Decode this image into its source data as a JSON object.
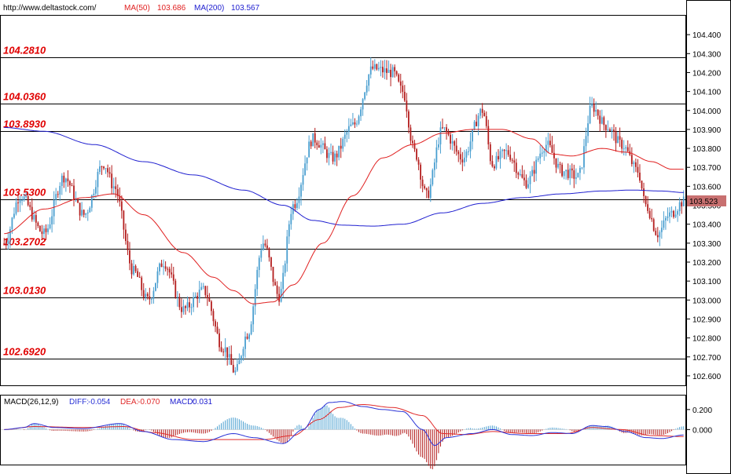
{
  "header": {
    "source_url": "http://www.deltastock.com/",
    "ma50_label": "MA(50)",
    "ma50_value": "103.686",
    "ma200_label": "MA(200)",
    "ma200_value": "103.567"
  },
  "macd_header": {
    "name": "MACD(26,12,9)",
    "diff_label": "DIFF:",
    "diff_value": "-0.054",
    "dea_label": "DEA:",
    "dea_value": "-0.070",
    "macd_label": "MACD:",
    "macd_value": "0.031"
  },
  "price_tag": "103.523",
  "colors": {
    "up": "#4a9fd0",
    "down": "#b41e1e",
    "ma50": "#e02020",
    "ma200": "#2020d0",
    "diff": "#2a33d6",
    "dea": "#e02a2a",
    "price_tag_bg": "#c87070"
  },
  "chart_data": [
    {
      "type": "candlestick",
      "ylim": [
        102.55,
        104.5
      ],
      "y_ticks": [
        "104.400",
        "104.300",
        "104.200",
        "104.100",
        "104.000",
        "103.900",
        "103.800",
        "103.700",
        "103.600",
        "103.500",
        "103.400",
        "103.300",
        "103.200",
        "103.100",
        "103.000",
        "102.900",
        "102.800",
        "102.700",
        "102.600"
      ],
      "levels": [
        {
          "label": "104.2810",
          "value": 104.281
        },
        {
          "label": "104.0360",
          "value": 104.036
        },
        {
          "label": "103.8930",
          "value": 103.893
        },
        {
          "label": "103.5300",
          "value": 103.53
        },
        {
          "label": "103.2702",
          "value": 103.2702
        },
        {
          "label": "103.0130",
          "value": 103.013
        },
        {
          "label": "102.6920",
          "value": 102.692
        }
      ],
      "price_anchors": [
        [
          0,
          103.3
        ],
        [
          8,
          103.55
        ],
        [
          20,
          103.35
        ],
        [
          30,
          103.65
        ],
        [
          40,
          103.45
        ],
        [
          50,
          103.72
        ],
        [
          55,
          103.6
        ],
        [
          65,
          103.15
        ],
        [
          72,
          103.0
        ],
        [
          80,
          103.2
        ],
        [
          90,
          102.95
        ],
        [
          100,
          103.05
        ],
        [
          110,
          102.75
        ],
        [
          116,
          102.62
        ],
        [
          122,
          102.82
        ],
        [
          130,
          103.3
        ],
        [
          138,
          103.02
        ],
        [
          145,
          103.5
        ],
        [
          155,
          103.85
        ],
        [
          165,
          103.75
        ],
        [
          175,
          103.92
        ],
        [
          185,
          104.22
        ],
        [
          195,
          104.2
        ],
        [
          200,
          104.1
        ],
        [
          206,
          103.78
        ],
        [
          212,
          103.55
        ],
        [
          220,
          103.9
        ],
        [
          230,
          103.75
        ],
        [
          240,
          104.0
        ],
        [
          245,
          103.72
        ],
        [
          252,
          103.78
        ],
        [
          262,
          103.62
        ],
        [
          272,
          103.82
        ],
        [
          280,
          103.68
        ],
        [
          288,
          103.65
        ],
        [
          295,
          104.02
        ],
        [
          302,
          103.92
        ],
        [
          310,
          103.82
        ],
        [
          318,
          103.68
        ],
        [
          322,
          103.5
        ],
        [
          328,
          103.35
        ],
        [
          334,
          103.45
        ],
        [
          341,
          103.52
        ]
      ],
      "ma50_anchors": [
        [
          0,
          103.35
        ],
        [
          20,
          103.48
        ],
        [
          40,
          103.54
        ],
        [
          55,
          103.56
        ],
        [
          70,
          103.45
        ],
        [
          90,
          103.25
        ],
        [
          105,
          103.12
        ],
        [
          115,
          103.05
        ],
        [
          125,
          102.98
        ],
        [
          135,
          102.99
        ],
        [
          145,
          103.08
        ],
        [
          160,
          103.3
        ],
        [
          175,
          103.55
        ],
        [
          190,
          103.75
        ],
        [
          205,
          103.82
        ],
        [
          220,
          103.88
        ],
        [
          235,
          103.9
        ],
        [
          250,
          103.9
        ],
        [
          265,
          103.85
        ],
        [
          275,
          103.77
        ],
        [
          285,
          103.76
        ],
        [
          300,
          103.8
        ],
        [
          312,
          103.78
        ],
        [
          325,
          103.73
        ],
        [
          335,
          103.69
        ]
      ],
      "ma200_anchors": [
        [
          0,
          103.91
        ],
        [
          20,
          103.89
        ],
        [
          45,
          103.82
        ],
        [
          70,
          103.73
        ],
        [
          95,
          103.66
        ],
        [
          120,
          103.58
        ],
        [
          140,
          103.5
        ],
        [
          155,
          103.42
        ],
        [
          170,
          103.395
        ],
        [
          185,
          103.39
        ],
        [
          200,
          103.4
        ],
        [
          220,
          103.46
        ],
        [
          240,
          103.51
        ],
        [
          260,
          103.54
        ],
        [
          280,
          103.56
        ],
        [
          300,
          103.575
        ],
        [
          315,
          103.58
        ],
        [
          330,
          103.575
        ],
        [
          341,
          103.567
        ]
      ],
      "candle_count": 342
    },
    {
      "type": "bar+line",
      "ylim": [
        -0.35,
        0.34
      ],
      "y_ticks": [
        "0.200",
        "0.000"
      ],
      "diff_anchors": [
        [
          0,
          0.0
        ],
        [
          10,
          0.02
        ],
        [
          15,
          0.06
        ],
        [
          25,
          0.02
        ],
        [
          40,
          0.01
        ],
        [
          58,
          0.06
        ],
        [
          70,
          -0.02
        ],
        [
          85,
          -0.1
        ],
        [
          100,
          -0.12
        ],
        [
          115,
          -0.04
        ],
        [
          125,
          -0.08
        ],
        [
          140,
          -0.14
        ],
        [
          150,
          0.0
        ],
        [
          158,
          0.2
        ],
        [
          163,
          0.27
        ],
        [
          170,
          0.28
        ],
        [
          180,
          0.23
        ],
        [
          190,
          0.2
        ],
        [
          200,
          0.18
        ],
        [
          210,
          0.0
        ],
        [
          216,
          -0.16
        ],
        [
          222,
          -0.08
        ],
        [
          235,
          -0.04
        ],
        [
          245,
          0.0
        ],
        [
          255,
          -0.05
        ],
        [
          265,
          -0.06
        ],
        [
          275,
          -0.03
        ],
        [
          285,
          -0.04
        ],
        [
          295,
          0.04
        ],
        [
          302,
          0.03
        ],
        [
          312,
          -0.02
        ],
        [
          322,
          -0.08
        ],
        [
          330,
          -0.09
        ],
        [
          341,
          -0.054
        ]
      ],
      "dea_anchors": [
        [
          0,
          0.0
        ],
        [
          15,
          0.03
        ],
        [
          40,
          0.02
        ],
        [
          60,
          0.03
        ],
        [
          75,
          -0.03
        ],
        [
          95,
          -0.1
        ],
        [
          115,
          -0.1
        ],
        [
          130,
          -0.1
        ],
        [
          145,
          -0.06
        ],
        [
          158,
          0.1
        ],
        [
          168,
          0.22
        ],
        [
          180,
          0.25
        ],
        [
          195,
          0.22
        ],
        [
          210,
          0.14
        ],
        [
          220,
          -0.04
        ],
        [
          232,
          -0.05
        ],
        [
          245,
          -0.02
        ],
        [
          262,
          -0.04
        ],
        [
          282,
          -0.04
        ],
        [
          295,
          0.02
        ],
        [
          310,
          0.0
        ],
        [
          325,
          -0.06
        ],
        [
          341,
          -0.07
        ]
      ]
    }
  ]
}
